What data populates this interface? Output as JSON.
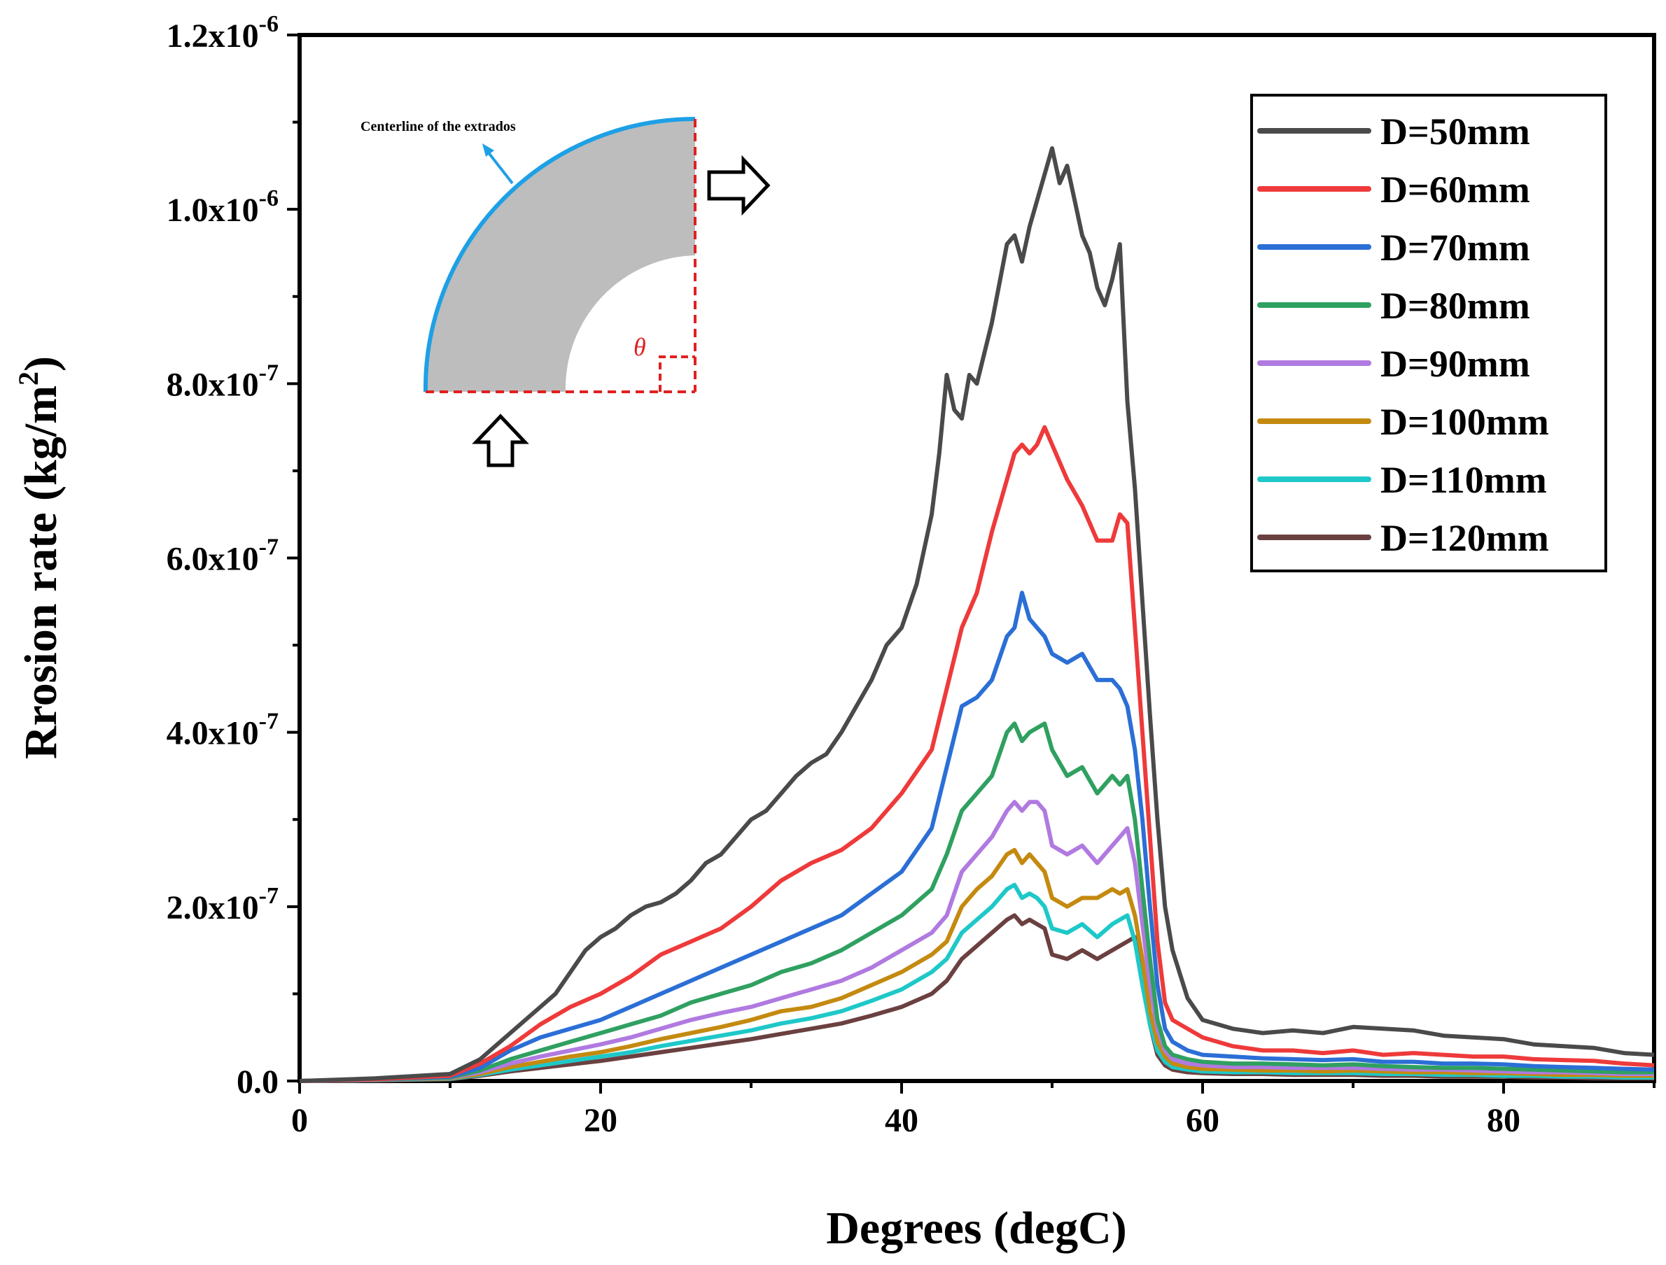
{
  "chart_data": {
    "type": "line",
    "title": "",
    "xlabel": "Degrees (degC)",
    "ylabel_main": "Rrosion rate (kg/m",
    "ylabel_sup": "2",
    "ylabel_close": ")",
    "xlim": [
      0,
      90
    ],
    "ylim": [
      0,
      1.2e-06
    ],
    "x_ticks": [
      0,
      20,
      40,
      60,
      80
    ],
    "x_tick_labels": [
      "0",
      "20",
      "40",
      "60",
      "80"
    ],
    "y_ticks": [
      0,
      2e-07,
      4e-07,
      6e-07,
      8e-07,
      1e-06,
      1.2e-06
    ],
    "y_tick_labels": [
      {
        "base": "0.0",
        "exp": ""
      },
      {
        "base": "2.0x10",
        "exp": "-7"
      },
      {
        "base": "4.0x10",
        "exp": "-7"
      },
      {
        "base": "6.0x10",
        "exp": "-7"
      },
      {
        "base": "8.0x10",
        "exp": "-7"
      },
      {
        "base": "1.0x10",
        "exp": "-6"
      },
      {
        "base": "1.2x10",
        "exp": "-6"
      }
    ],
    "legend_position": "top-right",
    "inset": {
      "annotation": "Centerline of the extrados",
      "angle_symbol": "θ"
    },
    "series": [
      {
        "name": "D=50mm",
        "color": "#4a4a4a",
        "x": [
          0,
          5,
          10,
          12,
          14,
          16,
          17,
          18,
          19,
          20,
          21,
          22,
          23,
          24,
          25,
          26,
          27,
          28,
          29,
          30,
          31,
          32,
          33,
          34,
          35,
          36,
          37,
          38,
          39,
          40,
          41,
          42,
          42.5,
          43,
          43.5,
          44,
          44.5,
          45,
          46,
          47,
          47.5,
          48,
          48.5,
          49,
          49.5,
          50,
          50.5,
          51,
          51.5,
          52,
          52.5,
          53,
          53.5,
          54,
          54.5,
          55,
          55.5,
          56,
          56.5,
          57,
          57.5,
          58,
          59,
          60,
          62,
          64,
          66,
          68,
          70,
          72,
          74,
          76,
          78,
          80,
          82,
          84,
          86,
          88,
          90
        ],
        "values": [
          0,
          3e-09,
          8e-09,
          2.5e-08,
          5.5e-08,
          8.5e-08,
          1e-07,
          1.25e-07,
          1.5e-07,
          1.65e-07,
          1.75e-07,
          1.9e-07,
          2e-07,
          2.05e-07,
          2.15e-07,
          2.3e-07,
          2.5e-07,
          2.6e-07,
          2.8e-07,
          3e-07,
          3.1e-07,
          3.3e-07,
          3.5e-07,
          3.65e-07,
          3.75e-07,
          4e-07,
          4.3e-07,
          4.6e-07,
          5e-07,
          5.2e-07,
          5.7e-07,
          6.5e-07,
          7.2e-07,
          8.1e-07,
          7.7e-07,
          7.6e-07,
          8.1e-07,
          8e-07,
          8.7e-07,
          9.6e-07,
          9.7e-07,
          9.4e-07,
          9.8e-07,
          1.01e-06,
          1.04e-06,
          1.07e-06,
          1.03e-06,
          1.05e-06,
          1.01e-06,
          9.7e-07,
          9.5e-07,
          9.1e-07,
          8.9e-07,
          9.2e-07,
          9.6e-07,
          7.8e-07,
          6.8e-07,
          5.5e-07,
          4.2e-07,
          3e-07,
          2e-07,
          1.5e-07,
          9.5e-08,
          7e-08,
          6e-08,
          5.5e-08,
          5.8e-08,
          5.5e-08,
          6.2e-08,
          6e-08,
          5.8e-08,
          5.2e-08,
          5e-08,
          4.8e-08,
          4.2e-08,
          4e-08,
          3.8e-08,
          3.2e-08,
          3e-08
        ]
      },
      {
        "name": "D=60mm",
        "color": "#ee3a3a",
        "x": [
          0,
          5,
          10,
          12,
          14,
          16,
          18,
          20,
          22,
          24,
          26,
          28,
          30,
          32,
          34,
          36,
          38,
          40,
          42,
          43,
          44,
          45,
          46,
          47,
          47.5,
          48,
          48.5,
          49,
          49.5,
          50,
          51,
          52,
          53,
          54,
          54.5,
          55,
          55.5,
          56,
          56.5,
          57,
          57.5,
          58,
          59,
          60,
          62,
          64,
          66,
          68,
          70,
          72,
          74,
          76,
          78,
          80,
          82,
          84,
          86,
          88,
          90
        ],
        "values": [
          0,
          2e-09,
          6e-09,
          2e-08,
          4e-08,
          6.5e-08,
          8.5e-08,
          1e-07,
          1.2e-07,
          1.45e-07,
          1.6e-07,
          1.75e-07,
          2e-07,
          2.3e-07,
          2.5e-07,
          2.65e-07,
          2.9e-07,
          3.3e-07,
          3.8e-07,
          4.5e-07,
          5.2e-07,
          5.6e-07,
          6.3e-07,
          6.9e-07,
          7.2e-07,
          7.3e-07,
          7.2e-07,
          7.3e-07,
          7.5e-07,
          7.3e-07,
          6.9e-07,
          6.6e-07,
          6.2e-07,
          6.2e-07,
          6.5e-07,
          6.4e-07,
          5.2e-07,
          4e-07,
          2.8e-07,
          1.6e-07,
          9e-08,
          7e-08,
          6e-08,
          5e-08,
          4e-08,
          3.5e-08,
          3.5e-08,
          3.2e-08,
          3.5e-08,
          3e-08,
          3.2e-08,
          3e-08,
          2.8e-08,
          2.8e-08,
          2.5e-08,
          2.4e-08,
          2.3e-08,
          2e-08,
          1.8e-08
        ]
      },
      {
        "name": "D=70mm",
        "color": "#2b6fd6",
        "x": [
          0,
          5,
          10,
          12,
          14,
          16,
          18,
          20,
          22,
          24,
          26,
          28,
          30,
          32,
          34,
          36,
          38,
          40,
          42,
          43,
          44,
          45,
          46,
          47,
          47.5,
          48,
          48.5,
          49,
          49.5,
          50,
          51,
          52,
          53,
          54,
          54.5,
          55,
          55.5,
          56,
          56.5,
          57,
          57.5,
          58,
          59,
          60,
          62,
          64,
          66,
          68,
          70,
          72,
          74,
          76,
          78,
          80,
          82,
          84,
          86,
          88,
          90
        ],
        "values": [
          0,
          2e-09,
          5e-09,
          1.5e-08,
          3.5e-08,
          5e-08,
          6e-08,
          7e-08,
          8.5e-08,
          1e-07,
          1.15e-07,
          1.3e-07,
          1.45e-07,
          1.6e-07,
          1.75e-07,
          1.9e-07,
          2.15e-07,
          2.4e-07,
          2.9e-07,
          3.6e-07,
          4.3e-07,
          4.4e-07,
          4.6e-07,
          5.1e-07,
          5.2e-07,
          5.6e-07,
          5.3e-07,
          5.2e-07,
          5.1e-07,
          4.9e-07,
          4.8e-07,
          4.9e-07,
          4.6e-07,
          4.6e-07,
          4.5e-07,
          4.3e-07,
          3.8e-07,
          3e-07,
          2e-07,
          1.1e-07,
          6e-08,
          4.5e-08,
          3.5e-08,
          3e-08,
          2.8e-08,
          2.6e-08,
          2.5e-08,
          2.4e-08,
          2.5e-08,
          2.2e-08,
          2.2e-08,
          2e-08,
          2e-08,
          1.9e-08,
          1.7e-08,
          1.6e-08,
          1.5e-08,
          1.4e-08,
          1.3e-08
        ]
      },
      {
        "name": "D=80mm",
        "color": "#2fa060",
        "x": [
          0,
          5,
          10,
          12,
          14,
          16,
          18,
          20,
          22,
          24,
          26,
          28,
          30,
          32,
          34,
          36,
          38,
          40,
          42,
          43,
          44,
          45,
          46,
          47,
          47.5,
          48,
          48.5,
          49,
          49.5,
          50,
          51,
          52,
          53,
          54,
          54.5,
          55,
          55.5,
          56,
          56.5,
          57,
          57.5,
          58,
          59,
          60,
          62,
          64,
          66,
          68,
          70,
          72,
          74,
          76,
          78,
          80,
          82,
          84,
          86,
          88,
          90
        ],
        "values": [
          0,
          1.5e-09,
          4e-09,
          1.2e-08,
          2.5e-08,
          3.5e-08,
          4.5e-08,
          5.5e-08,
          6.5e-08,
          7.5e-08,
          9e-08,
          1e-07,
          1.1e-07,
          1.25e-07,
          1.35e-07,
          1.5e-07,
          1.7e-07,
          1.9e-07,
          2.2e-07,
          2.6e-07,
          3.1e-07,
          3.3e-07,
          3.5e-07,
          4e-07,
          4.1e-07,
          3.9e-07,
          4e-07,
          4.05e-07,
          4.1e-07,
          3.8e-07,
          3.5e-07,
          3.6e-07,
          3.3e-07,
          3.5e-07,
          3.4e-07,
          3.5e-07,
          3e-07,
          2.2e-07,
          1.4e-07,
          7e-08,
          4e-08,
          3e-08,
          2.5e-08,
          2.2e-08,
          2e-08,
          2e-08,
          1.9e-08,
          1.8e-08,
          1.9e-08,
          1.7e-08,
          1.6e-08,
          1.5e-08,
          1.5e-08,
          1.4e-08,
          1.3e-08,
          1.2e-08,
          1.1e-08,
          1e-08,
          1e-08
        ]
      },
      {
        "name": "D=90mm",
        "color": "#b07ae0",
        "x": [
          0,
          5,
          10,
          12,
          14,
          16,
          18,
          20,
          22,
          24,
          26,
          28,
          30,
          32,
          34,
          36,
          38,
          40,
          42,
          43,
          44,
          45,
          46,
          47,
          47.5,
          48,
          48.5,
          49,
          49.5,
          50,
          51,
          52,
          53,
          54,
          54.5,
          55,
          55.5,
          56,
          56.5,
          57,
          57.5,
          58,
          59,
          60,
          62,
          64,
          66,
          68,
          70,
          72,
          74,
          76,
          78,
          80,
          82,
          84,
          86,
          88,
          90
        ],
        "values": [
          0,
          1e-09,
          3.5e-09,
          1e-08,
          2e-08,
          2.8e-08,
          3.5e-08,
          4.2e-08,
          5e-08,
          6e-08,
          7e-08,
          7.8e-08,
          8.5e-08,
          9.5e-08,
          1.05e-07,
          1.15e-07,
          1.3e-07,
          1.5e-07,
          1.7e-07,
          1.9e-07,
          2.4e-07,
          2.6e-07,
          2.8e-07,
          3.1e-07,
          3.2e-07,
          3.1e-07,
          3.2e-07,
          3.2e-07,
          3.1e-07,
          2.7e-07,
          2.6e-07,
          2.7e-07,
          2.5e-07,
          2.7e-07,
          2.8e-07,
          2.9e-07,
          2.5e-07,
          1.8e-07,
          1.1e-07,
          6e-08,
          3.5e-08,
          2.5e-08,
          2e-08,
          1.8e-08,
          1.6e-08,
          1.6e-08,
          1.5e-08,
          1.5e-08,
          1.5e-08,
          1.4e-08,
          1.3e-08,
          1.3e-08,
          1.2e-08,
          1.1e-08,
          1e-08,
          1e-08,
          9e-09,
          8e-09,
          8e-09
        ]
      },
      {
        "name": "D=100mm",
        "color": "#c48a10",
        "x": [
          0,
          5,
          10,
          12,
          14,
          16,
          18,
          20,
          22,
          24,
          26,
          28,
          30,
          32,
          34,
          36,
          38,
          40,
          42,
          43,
          44,
          45,
          46,
          47,
          47.5,
          48,
          48.5,
          49,
          49.5,
          50,
          51,
          52,
          53,
          54,
          54.5,
          55,
          55.5,
          56,
          56.5,
          57,
          57.5,
          58,
          59,
          60,
          62,
          64,
          66,
          68,
          70,
          72,
          74,
          76,
          78,
          80,
          82,
          84,
          86,
          88,
          90
        ],
        "values": [
          0,
          1e-09,
          3e-09,
          8e-09,
          1.6e-08,
          2.2e-08,
          2.8e-08,
          3.3e-08,
          4e-08,
          4.8e-08,
          5.5e-08,
          6.2e-08,
          7e-08,
          8e-08,
          8.5e-08,
          9.5e-08,
          1.1e-07,
          1.25e-07,
          1.45e-07,
          1.6e-07,
          2e-07,
          2.2e-07,
          2.35e-07,
          2.6e-07,
          2.65e-07,
          2.5e-07,
          2.6e-07,
          2.5e-07,
          2.4e-07,
          2.1e-07,
          2e-07,
          2.1e-07,
          2.1e-07,
          2.2e-07,
          2.15e-07,
          2.2e-07,
          1.9e-07,
          1.4e-07,
          8e-08,
          4.5e-08,
          2.8e-08,
          2e-08,
          1.6e-08,
          1.4e-08,
          1.3e-08,
          1.2e-08,
          1.2e-08,
          1.1e-08,
          1.2e-08,
          1.1e-08,
          1e-08,
          1e-08,
          9e-09,
          9e-09,
          8e-09,
          7e-09,
          7e-09,
          6e-09,
          6e-09
        ]
      },
      {
        "name": "D=110mm",
        "color": "#1ec8c8",
        "x": [
          0,
          5,
          10,
          12,
          14,
          16,
          18,
          20,
          22,
          24,
          26,
          28,
          30,
          32,
          34,
          36,
          38,
          40,
          42,
          43,
          44,
          45,
          46,
          47,
          47.5,
          48,
          48.5,
          49,
          49.5,
          50,
          51,
          52,
          53,
          54,
          54.5,
          55,
          55.5,
          56,
          56.5,
          57,
          57.5,
          58,
          59,
          60,
          62,
          64,
          66,
          68,
          70,
          72,
          74,
          76,
          78,
          80,
          82,
          84,
          86,
          88,
          90
        ],
        "values": [
          0,
          1e-09,
          2.5e-09,
          7e-09,
          1.3e-08,
          1.8e-08,
          2.3e-08,
          2.8e-08,
          3.3e-08,
          4e-08,
          4.6e-08,
          5.2e-08,
          5.8e-08,
          6.6e-08,
          7.2e-08,
          8e-08,
          9.2e-08,
          1.05e-07,
          1.25e-07,
          1.4e-07,
          1.7e-07,
          1.85e-07,
          2e-07,
          2.2e-07,
          2.25e-07,
          2.1e-07,
          2.15e-07,
          2.1e-07,
          2e-07,
          1.75e-07,
          1.7e-07,
          1.8e-07,
          1.65e-07,
          1.8e-07,
          1.85e-07,
          1.9e-07,
          1.6e-07,
          1.1e-07,
          6.5e-08,
          3.5e-08,
          2.2e-08,
          1.6e-08,
          1.3e-08,
          1.1e-08,
          1e-08,
          1e-08,
          9e-09,
          9e-09,
          9e-09,
          8e-09,
          8e-09,
          7e-09,
          7e-09,
          6e-09,
          6e-09,
          5e-09,
          5e-09,
          4e-09,
          4e-09
        ]
      },
      {
        "name": "D=120mm",
        "color": "#6b4040",
        "x": [
          0,
          5,
          10,
          12,
          14,
          16,
          18,
          20,
          22,
          24,
          26,
          28,
          30,
          32,
          34,
          36,
          38,
          40,
          42,
          43,
          44,
          45,
          46,
          47,
          47.5,
          48,
          48.5,
          49,
          49.5,
          50,
          51,
          52,
          53,
          54,
          54.5,
          55,
          55.5,
          56,
          56.5,
          57,
          57.5,
          58,
          59,
          60,
          62,
          64,
          66,
          68,
          70,
          72,
          74,
          76,
          78,
          80,
          82,
          84,
          86,
          88,
          90
        ],
        "values": [
          0,
          8e-10,
          2e-09,
          6e-09,
          1.1e-08,
          1.5e-08,
          1.9e-08,
          2.3e-08,
          2.8e-08,
          3.3e-08,
          3.8e-08,
          4.3e-08,
          4.8e-08,
          5.4e-08,
          6e-08,
          6.6e-08,
          7.5e-08,
          8.5e-08,
          1e-07,
          1.15e-07,
          1.4e-07,
          1.55e-07,
          1.7e-07,
          1.85e-07,
          1.9e-07,
          1.8e-07,
          1.85e-07,
          1.8e-07,
          1.75e-07,
          1.45e-07,
          1.4e-07,
          1.5e-07,
          1.4e-07,
          1.5e-07,
          1.55e-07,
          1.6e-07,
          1.65e-07,
          1.2e-07,
          6.5e-08,
          3e-08,
          1.8e-08,
          1.3e-08,
          1e-08,
          9e-09,
          8e-09,
          8e-09,
          7e-09,
          7e-09,
          7e-09,
          6e-09,
          6e-09,
          5e-09,
          5e-09,
          5e-09,
          4e-09,
          4e-09,
          3e-09,
          3e-09,
          3e-09
        ]
      }
    ]
  }
}
